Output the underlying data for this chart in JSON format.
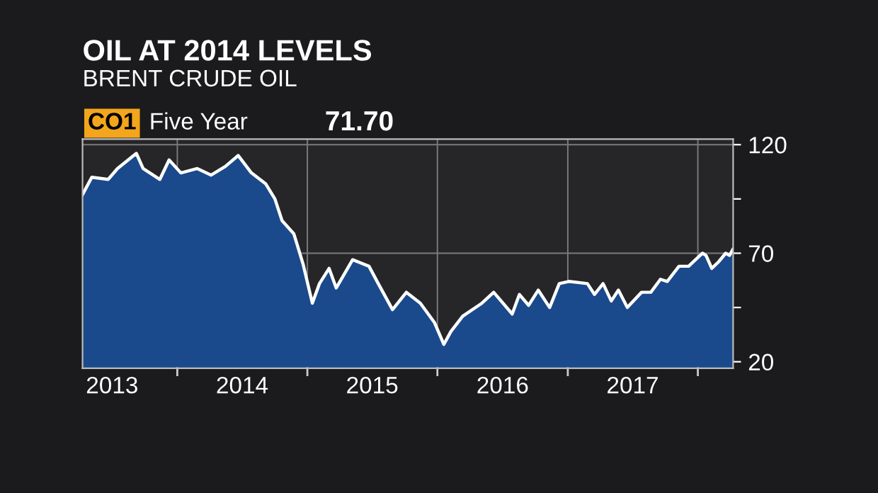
{
  "chart_data": {
    "type": "area",
    "title": "OIL AT 2014 LEVELS",
    "subtitle": "BRENT CRUDE OIL",
    "annotations": [
      "CO1",
      "Five Year",
      "71.70"
    ],
    "x": [
      "2013-04-10",
      "2013-05-06",
      "2013-06-21",
      "2013-07-17",
      "2013-09-08",
      "2013-09-27",
      "2013-11-13",
      "2013-12-09",
      "2014-01-11",
      "2014-02-26",
      "2014-04-06",
      "2014-05-16",
      "2014-06-21",
      "2014-07-28",
      "2014-09-06",
      "2014-10-02",
      "2014-10-22",
      "2014-11-24",
      "2014-12-20",
      "2015-01-15",
      "2015-02-04",
      "2015-03-03",
      "2015-03-23",
      "2015-05-08",
      "2015-06-23",
      "2015-07-19",
      "2015-08-28",
      "2015-10-06",
      "2015-11-14",
      "2015-12-24",
      "2016-01-19",
      "2016-02-08",
      "2016-03-12",
      "2016-05-05",
      "2016-06-07",
      "2016-07-29",
      "2016-08-18",
      "2016-09-13",
      "2016-10-10",
      "2016-11-11",
      "2016-12-08",
      "2017-01-04",
      "2017-02-25",
      "2017-03-17",
      "2017-04-10",
      "2017-05-03",
      "2017-05-23",
      "2017-06-17",
      "2017-07-27",
      "2017-08-22",
      "2017-09-18",
      "2017-10-07",
      "2017-11-09",
      "2017-12-06",
      "2018-01-14",
      "2018-01-24",
      "2018-02-09",
      "2018-02-28",
      "2018-03-20",
      "2018-03-31",
      "2018-04-09"
    ],
    "series": [
      {
        "color": "#1a4a8c",
        "values": [
          97,
          105,
          104,
          109,
          116,
          109,
          104,
          113,
          107,
          109,
          106,
          110,
          115,
          107,
          102,
          95,
          85,
          79,
          65,
          47,
          56,
          63,
          54,
          67,
          64,
          56,
          44,
          52,
          47,
          38,
          28,
          34,
          41,
          47,
          52,
          42,
          51,
          46,
          53,
          45,
          56,
          57,
          56,
          51,
          56,
          48,
          53,
          45,
          52,
          52,
          58,
          57,
          64,
          64,
          70,
          69,
          63,
          66,
          70,
          69,
          71.7
        ]
      }
    ],
    "xlim": [
      "2013-04-10",
      "2018-04-10"
    ],
    "xticks": [
      {
        "value": "2013-07-02",
        "label": "2013"
      },
      {
        "value": "2014-07-02",
        "label": "2014"
      },
      {
        "value": "2015-07-02",
        "label": "2015"
      },
      {
        "value": "2016-07-02",
        "label": "2016"
      },
      {
        "value": "2017-07-02",
        "label": "2017"
      }
    ],
    "ylim": [
      17,
      122.6
    ],
    "yticks": [
      20,
      {
        "value": 45,
        "label": null
      },
      70,
      {
        "value": 95,
        "label": null
      },
      120
    ],
    "grid": true
  }
}
